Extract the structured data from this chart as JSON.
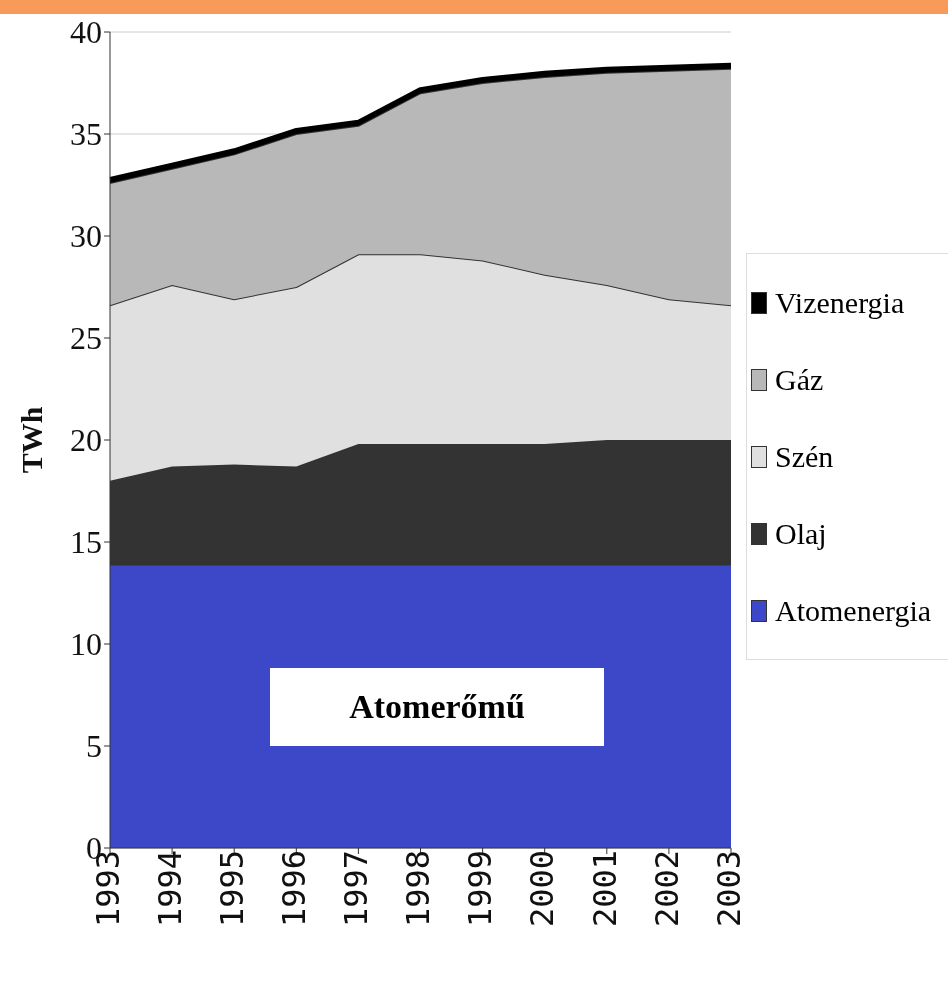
{
  "chart_data": {
    "type": "area",
    "stacked": true,
    "ylabel": "TWh",
    "categories": [
      "1993",
      "1994",
      "1995",
      "1996",
      "1997",
      "1998",
      "1999",
      "2000",
      "2001",
      "2002",
      "2003"
    ],
    "series": [
      {
        "name": "Atomenergia",
        "color": "#3c48c8",
        "values": [
          13.9,
          13.9,
          13.9,
          13.9,
          13.9,
          13.9,
          13.9,
          13.9,
          13.9,
          13.9,
          13.9
        ]
      },
      {
        "name": "Olaj",
        "color": "#333333",
        "values": [
          4.1,
          4.8,
          4.9,
          4.8,
          5.9,
          5.9,
          5.9,
          5.9,
          6.1,
          6.1,
          6.1
        ]
      },
      {
        "name": "Szén",
        "color": "#e0e0e0",
        "values": [
          8.6,
          8.9,
          8.1,
          8.8,
          9.3,
          9.3,
          9.0,
          8.3,
          7.6,
          6.9,
          6.6
        ]
      },
      {
        "name": "Gáz",
        "color": "#b8b8b8",
        "values": [
          6.0,
          5.7,
          7.1,
          7.5,
          6.3,
          7.9,
          8.7,
          9.7,
          10.4,
          11.2,
          11.6
        ]
      },
      {
        "name": "Vizenergia",
        "color": "#000000",
        "values": [
          0.2,
          0.2,
          0.2,
          0.2,
          0.2,
          0.2,
          0.2,
          0.2,
          0.2,
          0.2,
          0.2
        ]
      }
    ],
    "ylim": [
      0,
      40
    ],
    "yticks": [
      0,
      5,
      10,
      15,
      20,
      25,
      30,
      35,
      40
    ],
    "grid": "y",
    "legend": "right",
    "annotations": [
      "Atomerőmű"
    ]
  }
}
